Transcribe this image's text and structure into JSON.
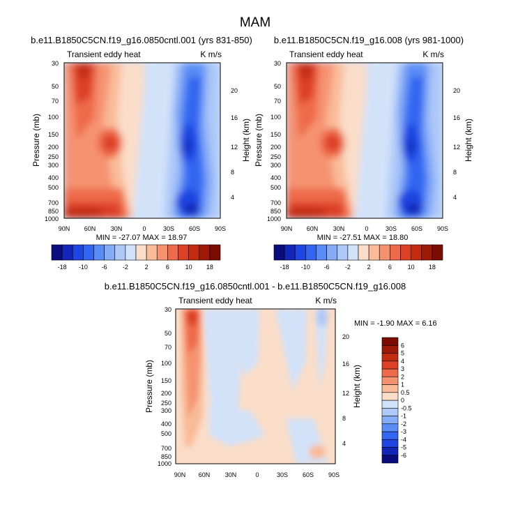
{
  "figure": {
    "title": "MAM"
  },
  "chart_data": [
    {
      "type": "heatmap",
      "title": "b.e11.B1850C5CN.f19_g16.0850cntl.001 (yrs 831-850)",
      "subtitle_left": "Transient eddy heat",
      "subtitle_right": "K m/s",
      "xlabel": "",
      "ylabel": "Pressure (mb)",
      "ylabel_right": "Height (km)",
      "x_ticks": [
        "90N",
        "60N",
        "30N",
        "0",
        "30S",
        "60S",
        "90S"
      ],
      "y_ticks": [
        "30",
        "50",
        "70",
        "100",
        "150",
        "200",
        "250",
        "300",
        "400",
        "500",
        "700",
        "850",
        "1000"
      ],
      "height_ticks": [
        "4",
        "8",
        "12",
        "16",
        "20"
      ],
      "xlim": [
        90,
        -90
      ],
      "ylim": [
        1000,
        30
      ],
      "stats": "MIN = -27.07  MAX = 18.97",
      "min": -27.07,
      "max": 18.97
    },
    {
      "type": "heatmap",
      "title": "b.e11.B1850C5CN.f19_g16.008 (yrs 981-1000)",
      "subtitle_left": "Transient eddy heat",
      "subtitle_right": "K m/s",
      "xlabel": "",
      "ylabel": "Pressure (mb)",
      "ylabel_right": "Height (km)",
      "x_ticks": [
        "90N",
        "60N",
        "30N",
        "0",
        "30S",
        "60S",
        "90S"
      ],
      "y_ticks": [
        "30",
        "50",
        "70",
        "100",
        "150",
        "200",
        "250",
        "300",
        "400",
        "500",
        "700",
        "850",
        "1000"
      ],
      "height_ticks": [
        "4",
        "8",
        "12",
        "16",
        "20"
      ],
      "xlim": [
        90,
        -90
      ],
      "ylim": [
        1000,
        30
      ],
      "stats": "MIN = -27.51  MAX = 18.80",
      "min": -27.51,
      "max": 18.8
    },
    {
      "type": "heatmap",
      "title": "b.e11.B1850C5CN.f19_g16.0850cntl.001 - b.e11.B1850C5CN.f19_g16.008",
      "subtitle_left": "Transient eddy heat",
      "subtitle_right": "K m/s",
      "xlabel": "",
      "ylabel": "Pressure (mb)",
      "ylabel_right": "Height (km)",
      "x_ticks": [
        "90N",
        "60N",
        "30N",
        "0",
        "30S",
        "60S",
        "90S"
      ],
      "y_ticks": [
        "30",
        "50",
        "70",
        "100",
        "150",
        "200",
        "250",
        "300",
        "400",
        "500",
        "700",
        "850",
        "1000"
      ],
      "height_ticks": [
        "4",
        "8",
        "12",
        "16",
        "20"
      ],
      "xlim": [
        90,
        -90
      ],
      "ylim": [
        1000,
        30
      ],
      "stats": "MIN = -1.90  MAX =  6.16",
      "min": -1.9,
      "max": 6.16
    }
  ],
  "colorbar_main": {
    "colors": [
      "#0b0d7f",
      "#1426b8",
      "#1f45e0",
      "#3366f0",
      "#5a8cf5",
      "#85acf7",
      "#aec9f8",
      "#d2e2f9",
      "#faddc8",
      "#f9bb98",
      "#f59371",
      "#ee6a4a",
      "#dd4125",
      "#c22d12",
      "#9e1a08",
      "#7a0c03"
    ],
    "labels": [
      "-18",
      "-10",
      "-6",
      "-2",
      "2",
      "6",
      "10",
      "18"
    ]
  },
  "colorbar_diff": {
    "colors": [
      "#0b0d7f",
      "#1426b8",
      "#1f45e0",
      "#3366f0",
      "#5a8cf5",
      "#85acf7",
      "#aec9f8",
      "#d2e2f9",
      "#faddc8",
      "#f9bb98",
      "#f59371",
      "#ee6a4a",
      "#dd4125",
      "#c22d12",
      "#9e1a08",
      "#7a0c03"
    ],
    "labels": [
      "-6",
      "-5",
      "-4",
      "-3",
      "-2",
      "-1",
      "-0.5",
      "0",
      "0.5",
      "1",
      "2",
      "3",
      "4",
      "5",
      "6"
    ]
  },
  "colors": {
    "level_neg": [
      "#d2e2f9",
      "#aec9f8",
      "#85acf7",
      "#5a8cf5",
      "#3366f0",
      "#1f45e0",
      "#1426b8",
      "#0b0d7f"
    ],
    "level_pos": [
      "#faddc8",
      "#f9bb98",
      "#f59371",
      "#ee6a4a",
      "#dd4125",
      "#c22d12",
      "#9e1a08",
      "#7a0c03"
    ]
  }
}
